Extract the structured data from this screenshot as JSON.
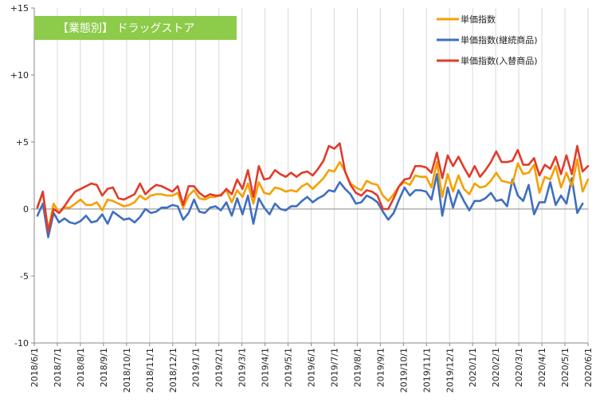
{
  "chart_data": {
    "type": "line",
    "title": "【業態別】 ドラッグストア",
    "title_box_color": "#8DCB4A",
    "ylim": [
      -10,
      15
    ],
    "y_ticks": [
      {
        "value": 15,
        "label": "+15"
      },
      {
        "value": 10,
        "label": "+10"
      },
      {
        "value": 5,
        "label": "+5"
      },
      {
        "value": 0,
        "label": "0"
      },
      {
        "value": -5,
        "label": "-5"
      },
      {
        "value": -10,
        "label": "-10"
      }
    ],
    "x_tick_labels": [
      "2018/6/1",
      "2018/7/1",
      "2018/8/1",
      "2018/9/1",
      "2018/10/1",
      "2018/11/1",
      "2018/12/1",
      "2019/1/1",
      "2019/2/1",
      "2019/3/1",
      "2019/4/1",
      "2019/5/1",
      "2019/6/1",
      "2019/7/1",
      "2019/8/1",
      "2019/9/1",
      "2019/10/1",
      "2019/11/1",
      "2019/12/1",
      "2020/1/1",
      "2020/2/1",
      "2020/3/1",
      "2020/4/1",
      "2020/5/1",
      "2020/6/1"
    ],
    "gridlines": "vertical monthly",
    "legend_position": "top-right",
    "series": [
      {
        "name": "単価指数",
        "color": "#F5A000",
        "values": [
          0.2,
          1.2,
          -1.6,
          0.4,
          -0.3,
          0.1,
          0.1,
          0.4,
          0.7,
          0.3,
          0.3,
          0.5,
          -0.1,
          0.7,
          0.6,
          0.4,
          0.2,
          0.3,
          0.5,
          1.0,
          0.7,
          1.0,
          1.1,
          1.1,
          1.0,
          1.0,
          1.2,
          0.1,
          1.0,
          1.4,
          0.8,
          0.7,
          0.9,
          0.9,
          1.1,
          1.4,
          0.5,
          1.4,
          0.9,
          1.9,
          0.4,
          2.0,
          1.2,
          1.1,
          1.6,
          1.5,
          1.3,
          1.4,
          1.3,
          1.7,
          1.9,
          1.5,
          1.9,
          2.3,
          2.9,
          2.8,
          3.5,
          2.8,
          1.9,
          1.6,
          1.4,
          2.1,
          1.9,
          1.8,
          1.0,
          0.6,
          1.1,
          1.7,
          2.0,
          1.8,
          2.5,
          2.4,
          2.4,
          1.6,
          3.5,
          0.9,
          2.6,
          1.3,
          2.5,
          1.5,
          1.1,
          1.9,
          1.6,
          1.7,
          2.1,
          2.7,
          2.1,
          2.0,
          1.9,
          3.4,
          2.6,
          2.7,
          3.3,
          1.2,
          2.4,
          2.2,
          3.2,
          1.6,
          2.7,
          1.7,
          3.7,
          1.3,
          2.2
        ]
      },
      {
        "name": "単価指数(継続商品)",
        "color": "#3F6FC0",
        "values": [
          -0.5,
          0.4,
          -2.1,
          -0.3,
          -1.0,
          -0.7,
          -1.0,
          -1.1,
          -0.9,
          -0.5,
          -1.0,
          -0.9,
          -0.4,
          -1.1,
          -0.2,
          -0.5,
          -0.8,
          -0.7,
          -1.0,
          -0.6,
          0.0,
          -0.3,
          -0.2,
          0.1,
          0.1,
          0.3,
          0.2,
          -0.8,
          -0.3,
          0.7,
          -0.2,
          -0.3,
          0.1,
          0.2,
          -0.1,
          0.5,
          -0.5,
          0.8,
          -0.4,
          1.0,
          -1.1,
          0.8,
          0.1,
          -0.4,
          0.4,
          0.0,
          -0.1,
          0.2,
          0.2,
          0.6,
          0.9,
          0.5,
          0.8,
          1.0,
          1.4,
          1.3,
          2.0,
          1.5,
          1.1,
          0.4,
          0.5,
          1.0,
          0.8,
          0.5,
          -0.2,
          -0.8,
          -0.3,
          0.7,
          1.6,
          1.0,
          1.4,
          1.4,
          1.3,
          0.7,
          2.6,
          -0.5,
          1.6,
          0.1,
          1.4,
          0.6,
          -0.1,
          0.6,
          0.6,
          0.8,
          1.2,
          0.6,
          0.7,
          0.2,
          2.2,
          1.0,
          0.6,
          1.8,
          -0.4,
          0.5,
          0.5,
          2.0,
          0.3,
          1.0,
          0.4,
          2.3,
          -0.3,
          0.4
        ]
      },
      {
        "name": "単価指数(入替商品)",
        "color": "#E03C2C",
        "values": [
          0.1,
          1.3,
          -1.7,
          0.0,
          -0.3,
          0.2,
          0.8,
          1.3,
          1.5,
          1.7,
          1.9,
          1.8,
          1.0,
          1.5,
          1.6,
          0.8,
          0.7,
          0.9,
          1.1,
          1.9,
          1.1,
          1.5,
          1.8,
          1.7,
          1.5,
          1.3,
          1.7,
          0.3,
          1.7,
          1.7,
          1.2,
          0.9,
          1.1,
          1.0,
          1.0,
          1.5,
          1.1,
          2.2,
          1.5,
          2.9,
          0.9,
          3.2,
          2.2,
          2.3,
          2.9,
          2.6,
          2.4,
          2.7,
          2.4,
          2.7,
          2.8,
          2.5,
          3.0,
          3.6,
          4.7,
          4.5,
          4.9,
          2.8,
          1.8,
          1.2,
          1.0,
          1.4,
          1.3,
          1.0,
          0.0,
          0.0,
          0.8,
          1.7,
          2.2,
          2.3,
          3.2,
          3.2,
          3.1,
          2.7,
          4.2,
          2.3,
          4.0,
          3.2,
          3.9,
          3.1,
          2.4,
          3.2,
          2.4,
          2.9,
          3.5,
          4.3,
          3.5,
          3.5,
          3.6,
          4.4,
          3.3,
          3.3,
          3.8,
          2.5,
          3.3,
          3.0,
          3.9,
          2.6,
          4.0,
          2.6,
          4.7,
          2.8,
          3.2
        ]
      }
    ]
  }
}
